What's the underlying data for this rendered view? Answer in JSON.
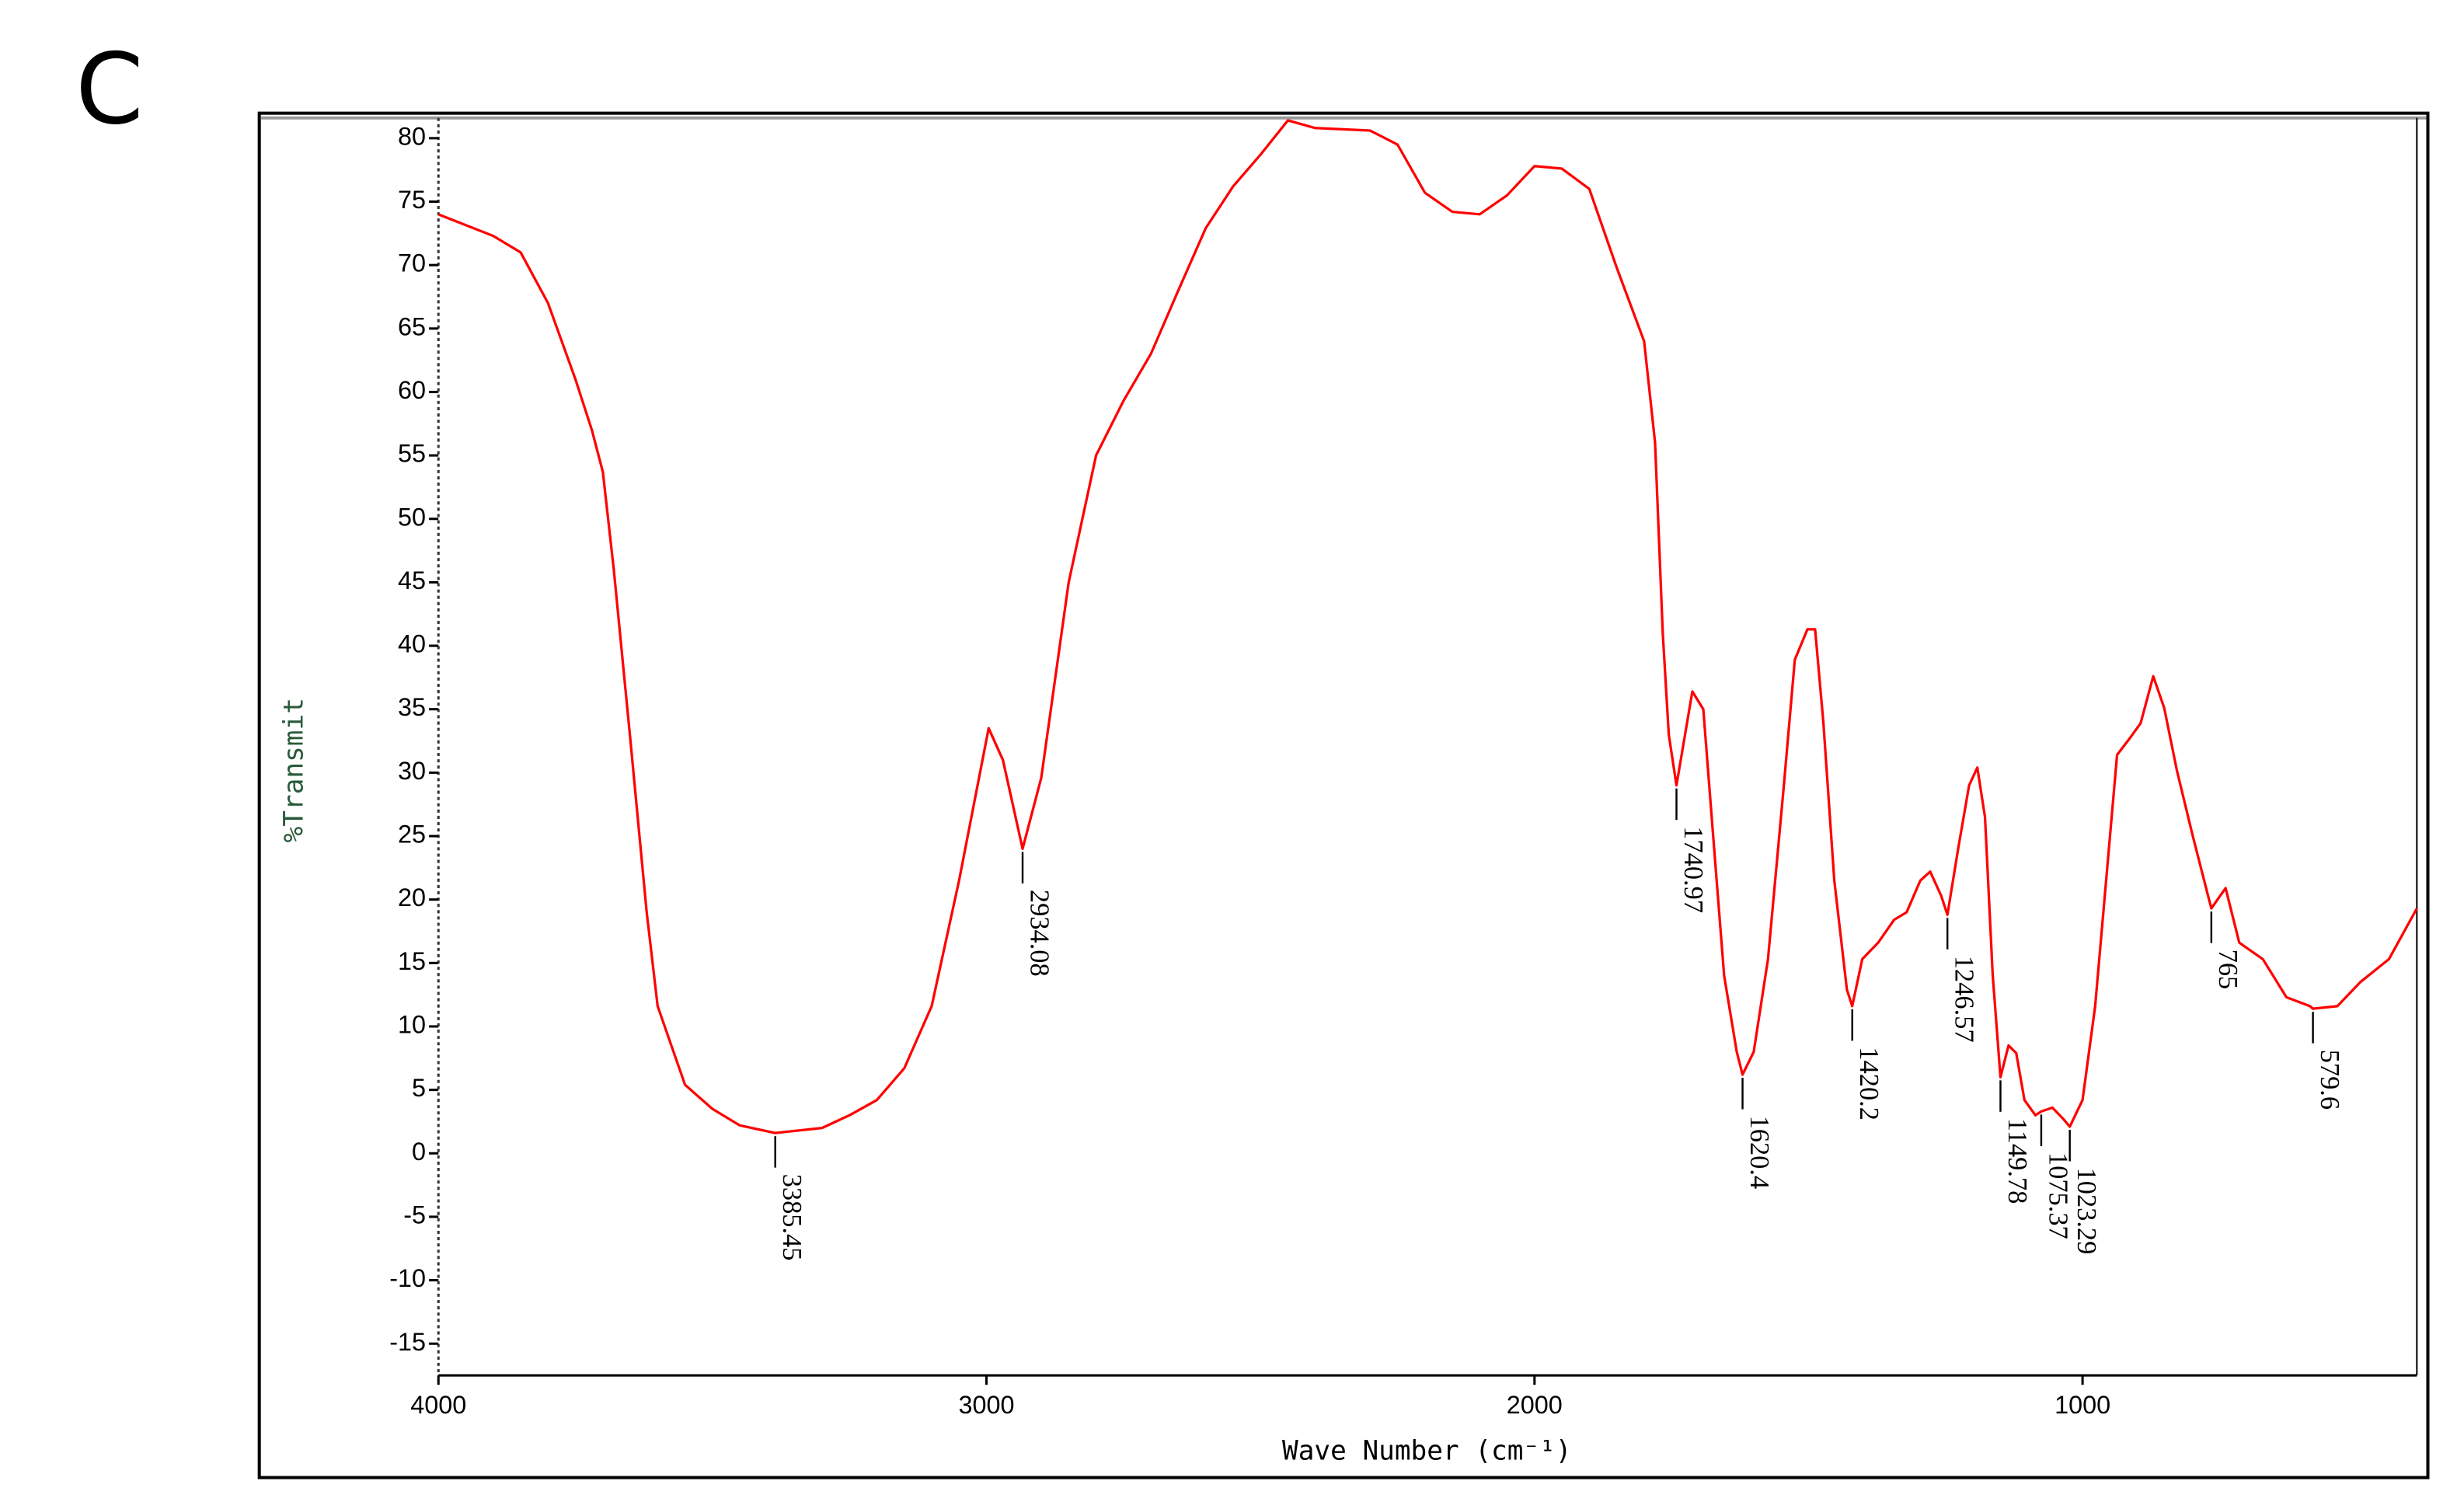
{
  "chart_data": {
    "type": "line",
    "panel_label": "C",
    "x_label": "Wave Number (cm⁻¹)",
    "y_label": "%Transmit",
    "xlim": [
      4000,
      390
    ],
    "xticks": [
      4000,
      3000,
      2000,
      1000
    ],
    "ylim": [
      -17.5,
      81.6
    ],
    "yticks": [
      80,
      75,
      70,
      65,
      60,
      55,
      50,
      45,
      40,
      35,
      30,
      25,
      20,
      15,
      10,
      5,
      0,
      -5,
      -10,
      -15
    ],
    "x": [
      4000,
      3900,
      3850,
      3800,
      3750,
      3720,
      3700,
      3680,
      3650,
      3620,
      3600,
      3550,
      3500,
      3450,
      3385.45,
      3300,
      3250,
      3200,
      3150,
      3100,
      3050,
      2996,
      2970,
      2934.08,
      2900,
      2850,
      2800,
      2750,
      2700,
      2650,
      2600,
      2550,
      2500,
      2450,
      2400,
      2300,
      2250,
      2200,
      2150,
      2100,
      2050,
      2000,
      1950,
      1900,
      1850,
      1800,
      1780,
      1766,
      1755,
      1740.97,
      1712,
      1692,
      1674,
      1654,
      1631,
      1620.4,
      1600,
      1574,
      1545,
      1525,
      1502,
      1488,
      1473,
      1453,
      1430,
      1420.2,
      1402,
      1373,
      1344,
      1321,
      1296,
      1278,
      1258,
      1246.57,
      1227,
      1207,
      1192,
      1178,
      1164,
      1149.78,
      1135,
      1121,
      1106,
      1086,
      1075.37,
      1055,
      1035,
      1023.29,
      1000,
      977,
      957,
      937,
      914,
      894,
      871,
      851,
      828,
      800,
      771,
      765,
      739,
      714,
      671,
      628,
      585,
      579.6,
      535,
      493,
      441,
      390
    ],
    "series": [
      {
        "color": "#ff0000",
        "values": [
          74,
          72.3,
          71,
          67,
          61,
          57,
          53.7,
          46,
          32.7,
          19,
          11.6,
          5.4,
          3.5,
          2.2,
          1.6,
          2,
          3,
          4.2,
          6.7,
          11.6,
          21.5,
          33.5,
          31,
          24,
          29.6,
          45,
          55,
          59.3,
          63,
          68,
          72.9,
          76.2,
          78.7,
          81.4,
          80.8,
          80.6,
          79.5,
          75.7,
          74.2,
          74,
          75.5,
          77.8,
          77.6,
          76,
          69.8,
          64,
          56,
          41,
          33,
          29,
          36.4,
          35,
          25,
          14,
          8,
          6.2,
          8,
          15.3,
          29,
          38.9,
          41.3,
          41.3,
          34,
          21.5,
          12.9,
          11.6,
          15.3,
          16.6,
          18.4,
          19,
          21.5,
          22.2,
          20.3,
          18.8,
          24,
          29,
          30.4,
          26.5,
          14.1,
          6,
          8.5,
          7.9,
          4.2,
          3,
          3.3,
          3.6,
          2.7,
          2.1,
          4.2,
          11.6,
          21.5,
          31.4,
          32.7,
          33.9,
          37.6,
          35.1,
          30.2,
          25.2,
          20.3,
          19.3,
          20.9,
          16.6,
          15.3,
          12.3,
          11.6,
          11.4,
          11.6,
          13.5,
          15.3,
          19.3
        ]
      }
    ],
    "annotations": [
      {
        "x": 3385.45,
        "y": 1.6
      },
      {
        "x": 2934.08,
        "y": 24
      },
      {
        "x": 1740.97,
        "y": 29
      },
      {
        "x": 1620.4,
        "y": 6.2
      },
      {
        "x": 1420.2,
        "y": 11.6
      },
      {
        "x": 1246.57,
        "y": 18.8
      },
      {
        "x": 1149.78,
        "y": 6
      },
      {
        "x": 1075.37,
        "y": 3.3
      },
      {
        "x": 1023.29,
        "y": 2.1
      },
      {
        "x": 765.0,
        "y": 19.3
      },
      {
        "x": 579.6,
        "y": 11.4
      }
    ]
  }
}
